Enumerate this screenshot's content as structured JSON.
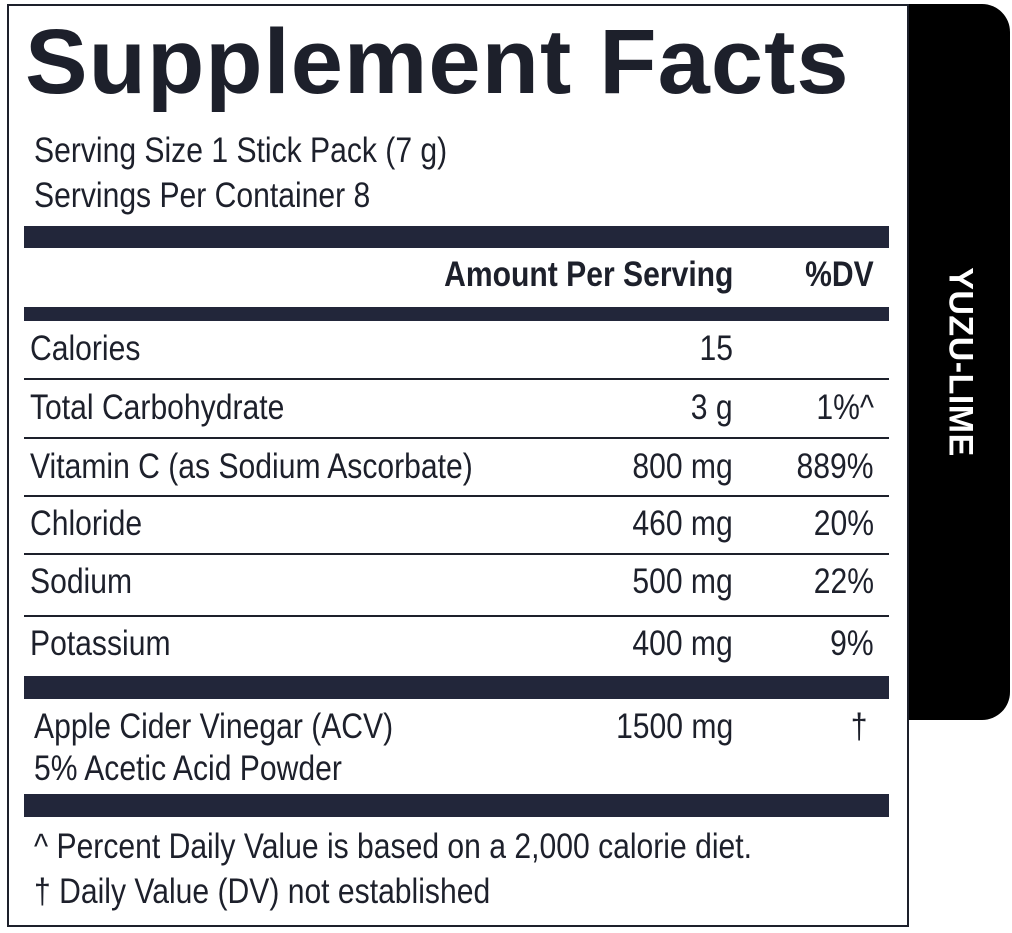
{
  "title": "Supplement Facts",
  "serving_size": "Serving Size 1 Stick Pack (7 g)",
  "servings_per_container": "Servings Per Container 8",
  "header": {
    "amount": "Amount Per Serving",
    "dv": "%DV"
  },
  "rows": [
    {
      "name": "Calories",
      "amount": "15",
      "dv": ""
    },
    {
      "name": "Total Carbohydrate",
      "amount": "3 g",
      "dv": "1%^"
    },
    {
      "name": "Vitamin C (as Sodium Ascorbate)",
      "amount": "800 mg",
      "dv": "889%"
    },
    {
      "name": "Chloride",
      "amount": "460 mg",
      "dv": "20%"
    },
    {
      "name": "Sodium",
      "amount": "500 mg",
      "dv": "22%"
    },
    {
      "name": "Potassium",
      "amount": "400 mg",
      "dv": "9%"
    }
  ],
  "acv": {
    "line1": "Apple Cider Vinegar (ACV)",
    "line2": "5% Acetic Acid Powder",
    "amount": "1500 mg",
    "dv": "†"
  },
  "footnotes": [
    "^ Percent Daily Value is based on a 2,000 calorie diet.",
    "† Daily Value (DV) not established"
  ],
  "flavor_tab": "YUZU-LIME",
  "colors": {
    "text": "#1d202b",
    "bars": "#22263a",
    "tab": "#000000"
  }
}
